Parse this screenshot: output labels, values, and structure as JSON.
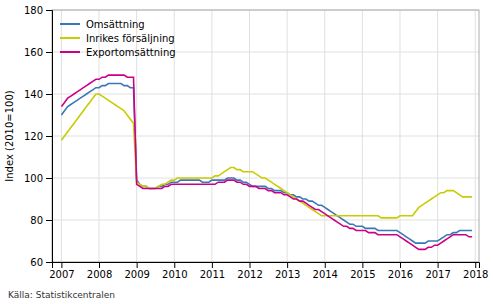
{
  "chart_data": {
    "type": "line",
    "y_label": "Index (2010=100)",
    "annotations": [
      "Källa: Statistikcentralen"
    ],
    "xlim": [
      2006.75,
      2018.1
    ],
    "xticks": [
      2007,
      2008,
      2009,
      2010,
      2011,
      2012,
      2013,
      2014,
      2015,
      2016,
      2017,
      2018
    ],
    "ylim": [
      60,
      180
    ],
    "yticks": [
      60,
      80,
      100,
      120,
      140,
      160,
      180
    ],
    "grid": true,
    "legend": "upper left",
    "x": [
      2007,
      2007.083333,
      2007.166667,
      2007.25,
      2007.333333,
      2007.416667,
      2007.5,
      2007.583333,
      2007.666667,
      2007.75,
      2007.833333,
      2007.916667,
      2008,
      2008.083333,
      2008.166667,
      2008.25,
      2008.333333,
      2008.416667,
      2008.5,
      2008.583333,
      2008.666667,
      2008.75,
      2008.833333,
      2008.916667,
      2009,
      2009.083333,
      2009.166667,
      2009.25,
      2009.333333,
      2009.416667,
      2009.5,
      2009.583333,
      2009.666667,
      2009.75,
      2009.833333,
      2009.916667,
      2010,
      2010.083333,
      2010.166667,
      2010.25,
      2010.333333,
      2010.416667,
      2010.5,
      2010.583333,
      2010.666667,
      2010.75,
      2010.833333,
      2010.916667,
      2011,
      2011.083333,
      2011.166667,
      2011.25,
      2011.333333,
      2011.416667,
      2011.5,
      2011.583333,
      2011.666667,
      2011.75,
      2011.833333,
      2011.916667,
      2012,
      2012.083333,
      2012.166667,
      2012.25,
      2012.333333,
      2012.416667,
      2012.5,
      2012.583333,
      2012.666667,
      2012.75,
      2012.833333,
      2012.916667,
      2013,
      2013.083333,
      2013.166667,
      2013.25,
      2013.333333,
      2013.416667,
      2013.5,
      2013.583333,
      2013.666667,
      2013.75,
      2013.833333,
      2013.916667,
      2014,
      2014.083333,
      2014.166667,
      2014.25,
      2014.333333,
      2014.416667,
      2014.5,
      2014.583333,
      2014.666667,
      2014.75,
      2014.833333,
      2014.916667,
      2015,
      2015.083333,
      2015.166667,
      2015.25,
      2015.333333,
      2015.416667,
      2015.5,
      2015.583333,
      2015.666667,
      2015.75,
      2015.833333,
      2015.916667,
      2016,
      2016.083333,
      2016.166667,
      2016.25,
      2016.333333,
      2016.416667,
      2016.5,
      2016.583333,
      2016.666667,
      2016.75,
      2016.833333,
      2016.916667,
      2017,
      2017.083333,
      2017.166667,
      2017.25,
      2017.333333,
      2017.416667,
      2017.5,
      2017.583333,
      2017.666667,
      2017.75,
      2017.833333,
      2017.916667
    ],
    "series": [
      {
        "name": "Omsättning",
        "color": "#3a78b5",
        "values": [
          130,
          132,
          134,
          135,
          136,
          137,
          138,
          139,
          140,
          141,
          142,
          143,
          143,
          144,
          144,
          145,
          145,
          145,
          145,
          145,
          144,
          144,
          143,
          143,
          99,
          97,
          96,
          96,
          95,
          95,
          95,
          96,
          96,
          97,
          97,
          98,
          98,
          98,
          99,
          99,
          99,
          99,
          99,
          99,
          99,
          98,
          98,
          98,
          99,
          99,
          99,
          99,
          99,
          100,
          100,
          100,
          99,
          99,
          98,
          98,
          97,
          96,
          96,
          96,
          96,
          96,
          95,
          95,
          94,
          94,
          94,
          93,
          93,
          92,
          92,
          91,
          91,
          90,
          90,
          89,
          89,
          88,
          87,
          87,
          86,
          85,
          84,
          83,
          82,
          81,
          80,
          79,
          78,
          78,
          77,
          77,
          77,
          76,
          76,
          76,
          76,
          75,
          75,
          75,
          75,
          75,
          75,
          75,
          74,
          73,
          72,
          71,
          70,
          69,
          69,
          69,
          69,
          70,
          70,
          70,
          70,
          71,
          72,
          73,
          73,
          74,
          74,
          75,
          75,
          75,
          75,
          75
        ]
      },
      {
        "name": "Inrikes försäljning",
        "color": "#c8cc00",
        "values": [
          118,
          120,
          122,
          124,
          126,
          128,
          130,
          132,
          134,
          136,
          138,
          140,
          140,
          139,
          138,
          137,
          136,
          135,
          134,
          133,
          132,
          130,
          128,
          126,
          98,
          97,
          96,
          96,
          95,
          95,
          95,
          96,
          97,
          97,
          98,
          99,
          99,
          100,
          100,
          100,
          100,
          100,
          100,
          100,
          100,
          100,
          100,
          100,
          100,
          101,
          101,
          102,
          103,
          104,
          105,
          105,
          104,
          104,
          103,
          103,
          103,
          103,
          102,
          101,
          100,
          100,
          99,
          98,
          97,
          96,
          95,
          94,
          93,
          92,
          91,
          90,
          89,
          88,
          87,
          86,
          85,
          84,
          83,
          82,
          82,
          82,
          82,
          82,
          82,
          82,
          82,
          82,
          82,
          82,
          82,
          82,
          82,
          82,
          82,
          82,
          82,
          82,
          81,
          81,
          81,
          81,
          81,
          81,
          82,
          82,
          82,
          82,
          82,
          84,
          86,
          87,
          88,
          89,
          90,
          91,
          92,
          93,
          93,
          94,
          94,
          94,
          93,
          92,
          91,
          91,
          91,
          91
        ]
      },
      {
        "name": "Exportomsättning",
        "color": "#cc0088",
        "values": [
          134,
          136,
          138,
          139,
          140,
          141,
          142,
          143,
          144,
          145,
          146,
          147,
          147,
          148,
          148,
          149,
          149,
          149,
          149,
          149,
          149,
          148,
          148,
          148,
          97,
          96,
          95,
          95,
          95,
          95,
          95,
          95,
          95,
          96,
          96,
          97,
          97,
          97,
          97,
          97,
          97,
          97,
          97,
          97,
          97,
          97,
          97,
          97,
          97,
          97,
          98,
          98,
          98,
          99,
          99,
          99,
          98,
          98,
          97,
          97,
          96,
          96,
          96,
          95,
          95,
          95,
          94,
          94,
          93,
          93,
          93,
          92,
          92,
          91,
          90,
          90,
          89,
          89,
          88,
          87,
          86,
          85,
          85,
          84,
          83,
          82,
          81,
          80,
          79,
          78,
          77,
          77,
          76,
          76,
          75,
          75,
          75,
          75,
          74,
          74,
          74,
          73,
          73,
          73,
          73,
          73,
          73,
          73,
          72,
          71,
          70,
          69,
          68,
          67,
          66,
          66,
          66,
          67,
          67,
          68,
          68,
          69,
          70,
          71,
          72,
          73,
          73,
          73,
          73,
          73,
          72,
          72
        ]
      }
    ]
  }
}
